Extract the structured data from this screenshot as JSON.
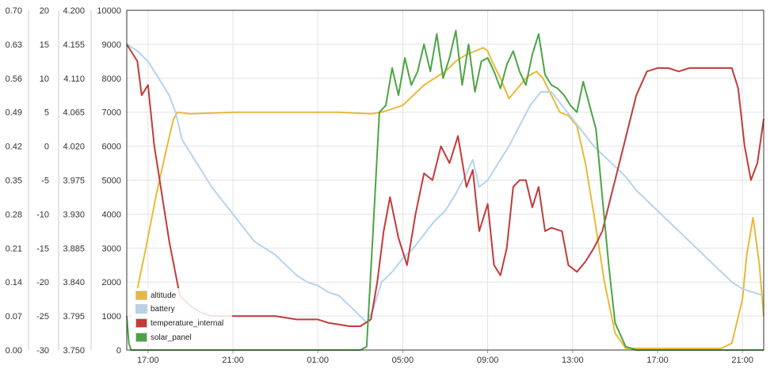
{
  "chart_data": {
    "type": "line",
    "title": "",
    "xlabel": "",
    "ylabel": "",
    "grid": true,
    "legend_position": "bottom-left",
    "x_ticks": [
      "17:00",
      "21:00",
      "01:00",
      "05:00",
      "09:00",
      "13:00",
      "17:00",
      "21:00"
    ],
    "x_range": [
      0,
      30
    ],
    "y_axes": [
      {
        "name": "axis-1",
        "ticks": [
          "0.70",
          "0.63",
          "0.56",
          "0.49",
          "0.42",
          "0.35",
          "0.28",
          "0.21",
          "0.14",
          "0.07",
          "0.00"
        ]
      },
      {
        "name": "axis-2",
        "ticks": [
          "20",
          "15",
          "10",
          "5",
          "0",
          "-5",
          "-10",
          "-15",
          "-20",
          "-25",
          "-30"
        ]
      },
      {
        "name": "axis-3",
        "ticks": [
          "4.200",
          "4.155",
          "4.110",
          "4.065",
          "4.020",
          "3.975",
          "3.930",
          "3.885",
          "3.840",
          "3.795",
          "3.750"
        ]
      },
      {
        "name": "axis-4",
        "ticks": [
          "10000",
          "9000",
          "8000",
          "7000",
          "6000",
          "5000",
          "4000",
          "3000",
          "2000",
          "1000",
          "0"
        ]
      }
    ],
    "plot_range": [
      0,
      10000
    ],
    "series": [
      {
        "name": "altitude",
        "color": "#e8b938",
        "x": [
          0.5,
          0.9,
          1.4,
          1.9,
          2.2,
          2.4,
          3.0,
          5.0,
          8.0,
          10.0,
          11.5,
          12.0,
          12.5,
          13.0,
          14.0,
          15.0,
          15.5,
          16.0,
          16.4,
          16.8,
          17.0,
          17.2,
          17.6,
          18.0,
          18.4,
          18.8,
          19.0,
          19.3,
          19.6,
          20.0,
          20.4,
          20.8,
          21.2,
          21.6,
          22.0,
          22.5,
          23.0,
          23.5,
          24.0,
          25.0,
          26.0,
          27.0,
          28.0,
          28.5,
          29.0,
          29.2,
          29.5,
          29.8,
          30.0
        ],
        "values": [
          1800,
          3000,
          4600,
          6000,
          6800,
          7000,
          6950,
          7000,
          7000,
          7000,
          6950,
          7000,
          7100,
          7200,
          7800,
          8200,
          8500,
          8700,
          8800,
          8900,
          8800,
          8500,
          8000,
          7400,
          7700,
          8000,
          8100,
          8200,
          8000,
          7500,
          7000,
          6900,
          6600,
          5500,
          4000,
          2000,
          500,
          50,
          50,
          50,
          50,
          50,
          50,
          200,
          1500,
          2800,
          3900,
          2500,
          1000
        ]
      },
      {
        "name": "battery",
        "color": "#b5d3ef",
        "x": [
          0.0,
          0.5,
          1.0,
          1.5,
          2.0,
          2.3,
          2.6,
          3.0,
          3.5,
          4.0,
          4.5,
          5.0,
          5.5,
          6.0,
          6.5,
          7.0,
          7.5,
          8.0,
          8.5,
          9.0,
          9.5,
          10.0,
          10.5,
          11.0,
          11.3,
          11.6,
          12.0,
          12.5,
          13.0,
          13.5,
          14.0,
          14.5,
          15.0,
          15.5,
          16.0,
          16.3,
          16.6,
          17.0,
          17.5,
          18.0,
          18.5,
          19.0,
          19.5,
          20.0,
          20.5,
          21.0,
          21.5,
          22.0,
          22.5,
          23.0,
          23.5,
          24.0,
          24.5,
          25.0,
          25.5,
          26.0,
          26.5,
          27.0,
          27.5,
          28.0,
          28.5,
          29.0,
          29.5,
          30.0
        ],
        "values": [
          9000,
          8800,
          8500,
          8000,
          7500,
          7000,
          6200,
          5800,
          5300,
          4800,
          4400,
          4000,
          3600,
          3200,
          3000,
          2800,
          2500,
          2200,
          2000,
          1900,
          1700,
          1600,
          1300,
          1000,
          800,
          1200,
          2000,
          2300,
          2700,
          3000,
          3400,
          3800,
          4100,
          4600,
          5200,
          5600,
          4800,
          5000,
          5500,
          6000,
          6600,
          7200,
          7600,
          7600,
          7200,
          6800,
          6400,
          6000,
          5700,
          5400,
          5100,
          4700,
          4400,
          4100,
          3800,
          3500,
          3200,
          2900,
          2600,
          2300,
          2000,
          1800,
          1700,
          1600
        ]
      },
      {
        "name": "temperature_internal",
        "color": "#c33a3a",
        "x": [
          0.0,
          0.5,
          0.7,
          1.0,
          1.3,
          1.6,
          2.0,
          2.5,
          3.0,
          3.5,
          4.0,
          5.0,
          6.0,
          7.0,
          8.0,
          9.0,
          9.5,
          10.0,
          10.5,
          11.0,
          11.5,
          11.8,
          12.1,
          12.4,
          12.8,
          13.2,
          13.6,
          14.0,
          14.4,
          14.8,
          15.2,
          15.6,
          16.0,
          16.3,
          16.6,
          17.0,
          17.3,
          17.6,
          17.9,
          18.2,
          18.5,
          18.8,
          19.1,
          19.4,
          19.7,
          20.0,
          20.5,
          20.8,
          21.2,
          21.6,
          22.0,
          22.4,
          22.8,
          23.2,
          23.6,
          24.0,
          24.5,
          25.0,
          25.5,
          26.0,
          26.5,
          27.0,
          27.5,
          28.0,
          28.5,
          28.8,
          29.1,
          29.4,
          29.7,
          30.0
        ],
        "values": [
          9000,
          8500,
          7500,
          7800,
          6000,
          4800,
          3200,
          1600,
          1300,
          1100,
          1000,
          1000,
          1000,
          1000,
          900,
          900,
          800,
          750,
          700,
          700,
          900,
          2000,
          3500,
          4500,
          3300,
          2500,
          4000,
          5200,
          5000,
          6000,
          5500,
          6300,
          4800,
          5300,
          3500,
          4300,
          2500,
          2200,
          3000,
          4800,
          5000,
          5000,
          4200,
          4800,
          3500,
          3600,
          3500,
          2500,
          2300,
          2600,
          3000,
          3500,
          4500,
          5500,
          6500,
          7500,
          8200,
          8300,
          8300,
          8200,
          8300,
          8300,
          8300,
          8300,
          8300,
          7700,
          6000,
          5000,
          5500,
          6800
        ]
      },
      {
        "name": "solar_panel",
        "color": "#4ba444",
        "x": [
          0.0,
          0.1,
          0.2,
          11.0,
          11.3,
          11.6,
          11.9,
          12.2,
          12.5,
          12.8,
          13.1,
          13.4,
          13.7,
          14.0,
          14.3,
          14.6,
          14.9,
          15.2,
          15.5,
          15.8,
          16.1,
          16.4,
          16.7,
          17.0,
          17.3,
          17.6,
          17.9,
          18.2,
          18.5,
          18.8,
          19.1,
          19.4,
          19.7,
          20.0,
          20.3,
          20.6,
          20.9,
          21.2,
          21.5,
          21.8,
          22.1,
          22.4,
          22.7,
          23.0,
          23.5,
          24.0,
          30.0
        ],
        "values": [
          1000,
          200,
          0,
          0,
          100,
          3500,
          7000,
          7200,
          8300,
          7500,
          8600,
          7800,
          8200,
          9000,
          8200,
          9300,
          8000,
          8600,
          9400,
          7800,
          9000,
          7600,
          8500,
          8600,
          8200,
          7700,
          8400,
          8800,
          8200,
          7800,
          8700,
          9300,
          8100,
          7800,
          7700,
          7500,
          7200,
          7000,
          7900,
          7200,
          6500,
          4500,
          2500,
          800,
          100,
          0,
          0
        ]
      }
    ]
  }
}
